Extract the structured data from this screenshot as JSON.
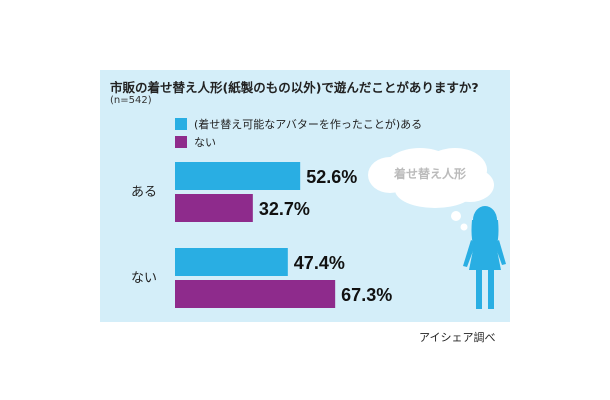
{
  "title": "市販の着せ替え人形(紙製のもの以外)で遊んだことがありますか?",
  "sample": "(n=542)",
  "credit": "アイシェア調べ",
  "bubble_text": "着せ替え人形",
  "colors": {
    "panel": "#d4eef9",
    "series1": "#29aee3",
    "series2": "#8e2b8c"
  },
  "legend": [
    {
      "label": "(着せ替え可能なアバターを作ったことが)ある",
      "color": "#29aee3"
    },
    {
      "label": "ない",
      "color": "#8e2b8c"
    }
  ],
  "chart_data": {
    "type": "bar",
    "orientation": "horizontal",
    "categories": [
      "ある",
      "ない"
    ],
    "series": [
      {
        "name": "(着せ替え可能なアバターを作ったことが)ある",
        "values": [
          52.6,
          47.4
        ],
        "labels": [
          "52.6%",
          "47.4%"
        ]
      },
      {
        "name": "ない",
        "values": [
          32.7,
          67.3
        ],
        "labels": [
          "32.7%",
          "67.3%"
        ]
      }
    ],
    "xlim": [
      0,
      100
    ],
    "grid": false,
    "legend_position": "top-left"
  }
}
